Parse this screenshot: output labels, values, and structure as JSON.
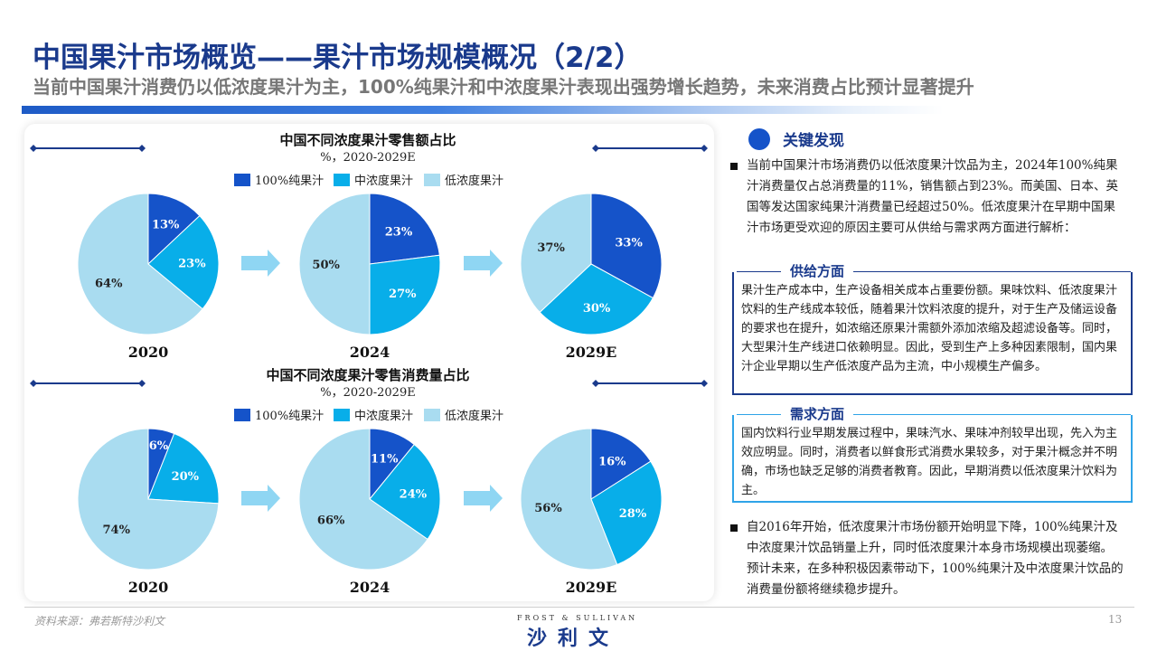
{
  "header": {
    "title": "中国果汁市场概览——果汁市场规模概况（2/2）",
    "subtitle": "当前中国果汁消费仍以低浓度果汁为主，100%纯果汁和中浓度果汁表现出强势增长趋势，未来消费占比预计显著提升"
  },
  "colors": {
    "pure": "#1553c9",
    "medium": "#08aee9",
    "low": "#a9dcf0",
    "arrow": "#8fd6f3",
    "accent": "#1a3a8c"
  },
  "chart_data": [
    {
      "type": "pie",
      "title": "中国不同浓度果汁零售额占比",
      "subtitle": "%，2020-2029E",
      "legend": [
        "100%纯果汁",
        "中浓度果汁",
        "低浓度果汁"
      ],
      "categories": [
        "100%纯果汁",
        "中浓度果汁",
        "低浓度果汁"
      ],
      "pies": [
        {
          "year": "2020",
          "values": [
            13,
            23,
            64
          ]
        },
        {
          "year": "2024",
          "values": [
            23,
            27,
            50
          ]
        },
        {
          "year": "2029E",
          "values": [
            33,
            30,
            37
          ]
        }
      ]
    },
    {
      "type": "pie",
      "title": "中国不同浓度果汁零售消费量占比",
      "subtitle": "%，2020-2029E",
      "legend": [
        "100%纯果汁",
        "中浓度果汁",
        "低浓度果汁"
      ],
      "categories": [
        "100%纯果汁",
        "中浓度果汁",
        "低浓度果汁"
      ],
      "pies": [
        {
          "year": "2020",
          "values": [
            6,
            20,
            74
          ]
        },
        {
          "year": "2024",
          "values": [
            11,
            24,
            66
          ]
        },
        {
          "year": "2029E",
          "values": [
            16,
            28,
            56
          ]
        }
      ]
    }
  ],
  "findings": {
    "title": "关键发现",
    "bullet1": "当前中国果汁市场消费仍以低浓度果汁饮品为主，2024年100%纯果汁消费量仅占总消费量的11%，销售额占到23%。而美国、日本、英国等发达国家纯果汁消费量已经超过50%。低浓度果汁在早期中国果汁市场更受欢迎的原因主要可从供给与需求两方面进行解析：",
    "supply_title": "供给方面",
    "supply_text": "果汁生产成本中，生产设备相关成本占重要份额。果味饮料、低浓度果汁饮料的生产线成本较低，随着果汁饮料浓度的提升，对于生产及储运设备的要求也在提升，如浓缩还原果汁需额外添加浓缩及超滤设备等。同时，大型果汁生产线进口依赖明显。因此，受到生产上多种因素限制，国内果汁企业早期以生产低浓度产品为主流，中小规模生产偏多。",
    "demand_title": "需求方面",
    "demand_text": "国内饮料行业早期发展过程中，果味汽水、果味冲剂较早出现，先入为主效应明显。同时，消费者以鲜食形式消费水果较多，对于果汁概念并不明确，市场也缺乏足够的消费者教育。因此，早期消费以低浓度果汁饮料为主。",
    "bullet2": "自2016年开始，低浓度果汁市场份额开始明显下降，100%纯果汁及中浓度果汁饮品销量上升，同时低浓度果汁本身市场规模出现萎缩。预计未来，在多种积极因素带动下，100%纯果汁及中浓度果汁饮品的消费量份额将继续稳步提升。"
  },
  "footer": {
    "source": "资料来源：弗若斯特沙利文",
    "logo_top": "FROST & SULLIVAN",
    "logo_main": "沙利文",
    "page": "13"
  }
}
